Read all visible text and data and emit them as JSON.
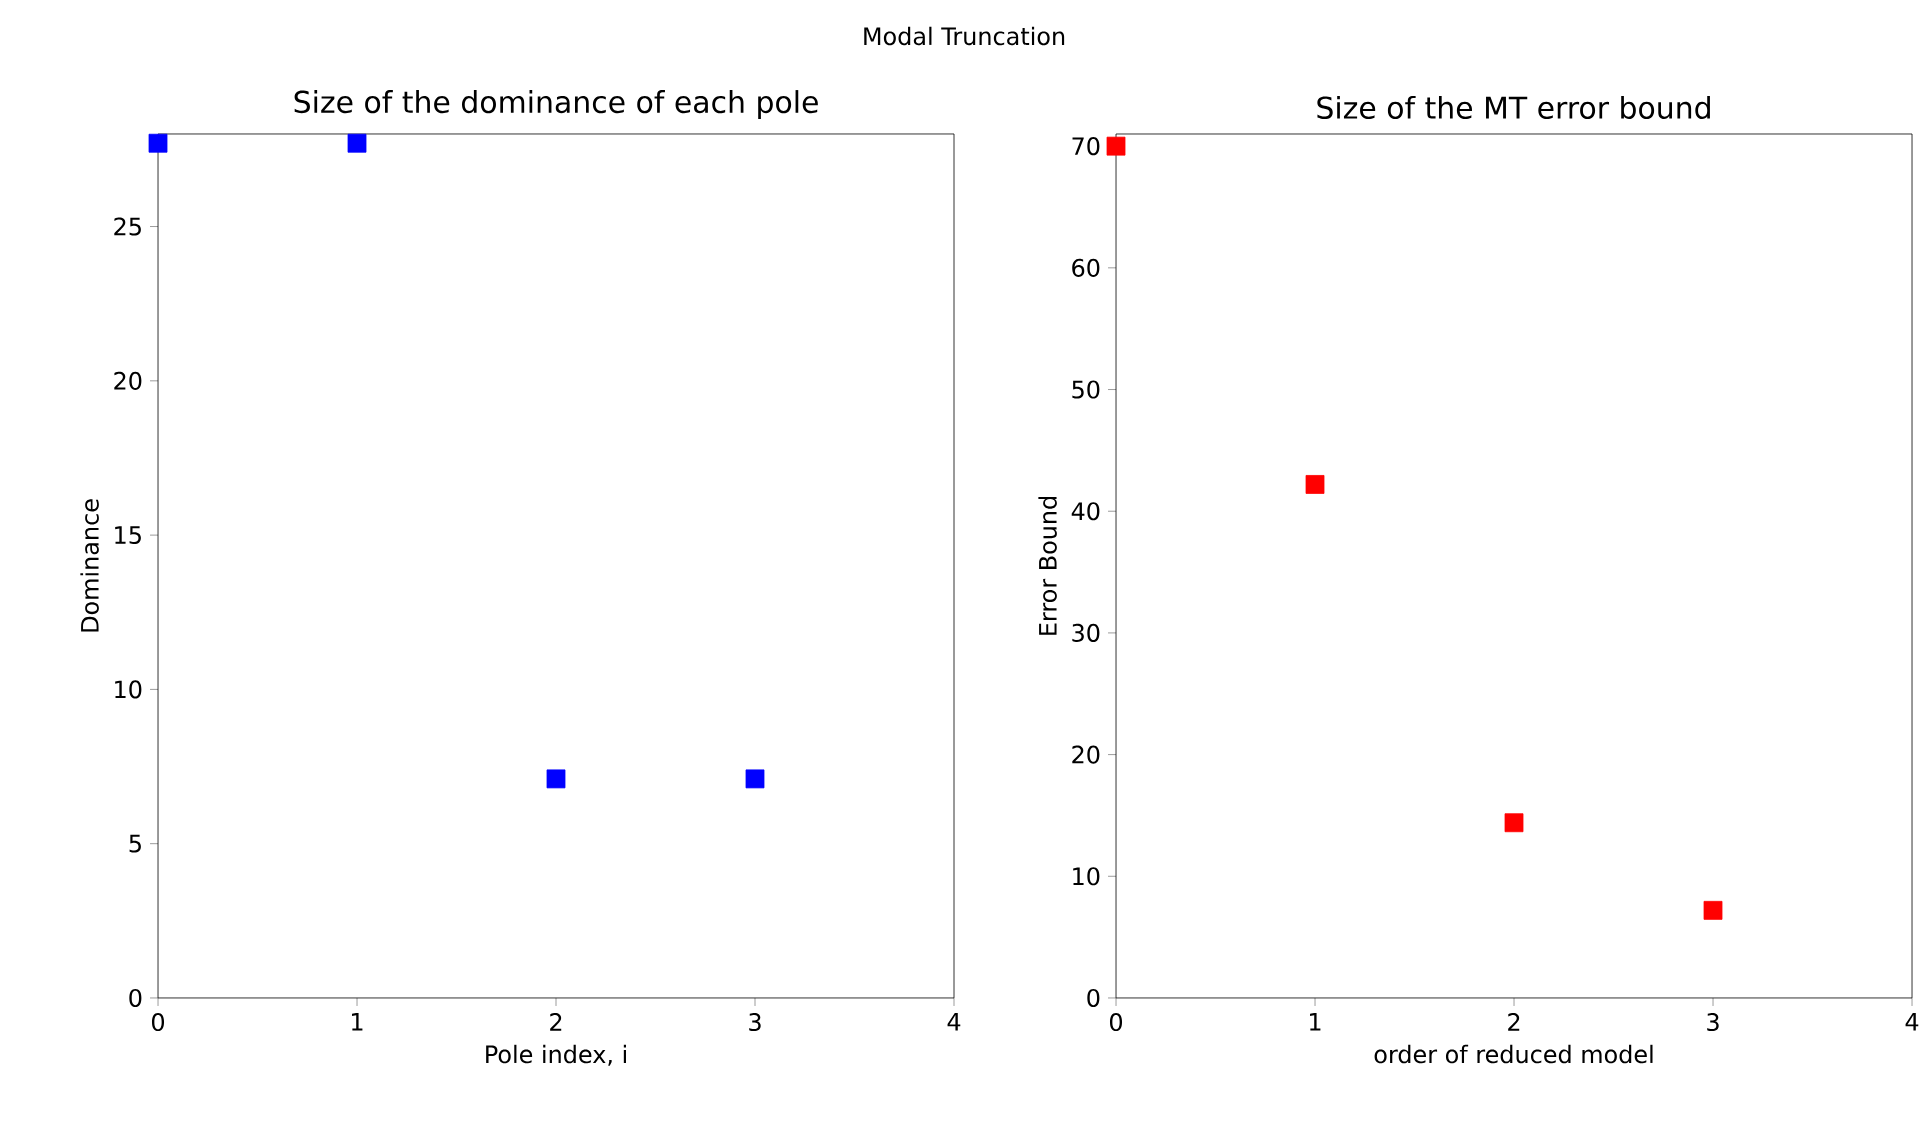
{
  "chart_data": [
    {
      "type": "scatter",
      "title": "Size of the dominance of each pole",
      "xlabel": "Pole index, i",
      "ylabel": "Dominance",
      "annotations": [
        "Modal Truncation"
      ],
      "marker": "square",
      "x": [
        0,
        1,
        2,
        3
      ],
      "values": [
        27.7,
        27.7,
        7.1,
        7.1
      ],
      "color": "#0000ff",
      "xlim": [
        0,
        4
      ],
      "ylim": [
        0,
        28
      ],
      "xticks": [
        0,
        1,
        2,
        3,
        4
      ],
      "yticks": [
        0,
        5,
        10,
        15,
        20,
        25
      ]
    },
    {
      "type": "scatter",
      "title": "Size of the MT error bound",
      "xlabel": "order of reduced model",
      "ylabel": "Error Bound",
      "marker": "square",
      "x": [
        0,
        1,
        2,
        3
      ],
      "values": [
        70,
        42.2,
        14.4,
        7.2
      ],
      "color": "#ff0000",
      "xlim": [
        0,
        4
      ],
      "ylim": [
        0,
        71
      ],
      "xticks": [
        0,
        1,
        2,
        3,
        4
      ],
      "yticks": [
        0,
        10,
        20,
        30,
        40,
        50,
        60,
        70
      ]
    }
  ]
}
